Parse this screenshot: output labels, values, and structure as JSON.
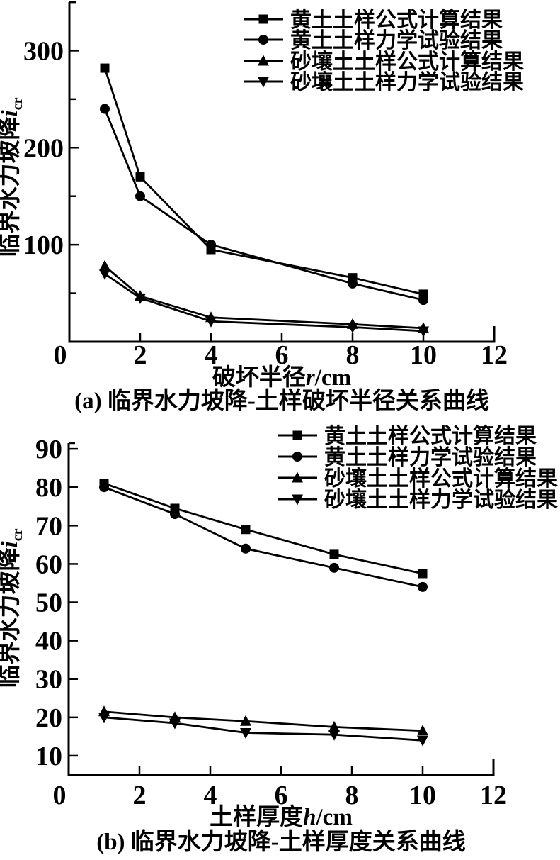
{
  "figure": {
    "background": "#ffffff",
    "ink_color": "#000000"
  },
  "chart_data": [
    {
      "id": "a",
      "type": "line",
      "caption": "(a) 临界水力坡降-土样破坏半径关系曲线",
      "xlabel": {
        "text": "破坏半径",
        "var": "r",
        "unit": "/cm"
      },
      "ylabel": {
        "text": "临界水力坡降",
        "var": "i",
        "sub": "cr"
      },
      "xlim": [
        0,
        12
      ],
      "ylim": [
        0,
        350
      ],
      "x_ticks": [
        0,
        2,
        4,
        6,
        8,
        10,
        12
      ],
      "y_ticks_major": [
        100,
        200,
        300
      ],
      "y_ticks_minor": [
        50,
        150,
        250,
        350
      ],
      "grid": false,
      "legend_position": "top-right-inside",
      "x": [
        1,
        2,
        4,
        8,
        10
      ],
      "series": [
        {
          "name": "黄土土样公式计算结果",
          "marker": "square",
          "color": "#000000",
          "values": [
            282,
            170,
            95,
            66,
            49
          ]
        },
        {
          "name": "黄土土样力学试验结果",
          "marker": "circle",
          "color": "#000000",
          "values": [
            240,
            150,
            100,
            60,
            43
          ]
        },
        {
          "name": "砂壤土土样公式计算结果",
          "marker": "triangle-up",
          "color": "#000000",
          "values": [
            78,
            47,
            25,
            18,
            14
          ]
        },
        {
          "name": "砂壤土土样力学试验结果",
          "marker": "triangle-down",
          "color": "#000000",
          "values": [
            70,
            45,
            21,
            15,
            11
          ]
        }
      ]
    },
    {
      "id": "b",
      "type": "line",
      "caption": "(b) 临界水力坡降-土样厚度关系曲线",
      "xlabel": {
        "text": "土样厚度",
        "var": "h",
        "unit": "/cm"
      },
      "ylabel": {
        "text": "临界水力坡降",
        "var": "i",
        "sub": "cr"
      },
      "xlim": [
        0,
        12
      ],
      "ylim": [
        5,
        91.5
      ],
      "x_ticks": [
        0,
        2,
        4,
        6,
        8,
        10,
        12
      ],
      "y_ticks_major": [
        10,
        20,
        30,
        40,
        50,
        60,
        70,
        80,
        90
      ],
      "y_ticks_minor": [],
      "grid": false,
      "legend_position": "top-right-inside",
      "x": [
        1,
        3,
        5,
        7.5,
        10
      ],
      "series": [
        {
          "name": "黄土土样公式计算结果",
          "marker": "square",
          "color": "#000000",
          "values": [
            81,
            74.5,
            69,
            62.5,
            57.5
          ]
        },
        {
          "name": "黄土土样力学试验结果",
          "marker": "circle",
          "color": "#000000",
          "values": [
            80,
            73,
            64,
            59,
            54
          ]
        },
        {
          "name": "砂壤土土样公式计算结果",
          "marker": "triangle-up",
          "color": "#000000",
          "values": [
            21.5,
            20,
            19,
            17.5,
            16.5
          ]
        },
        {
          "name": "砂壤土土样力学试验结果",
          "marker": "triangle-down",
          "color": "#000000",
          "values": [
            20,
            18.5,
            16,
            15.5,
            14
          ]
        }
      ]
    }
  ]
}
